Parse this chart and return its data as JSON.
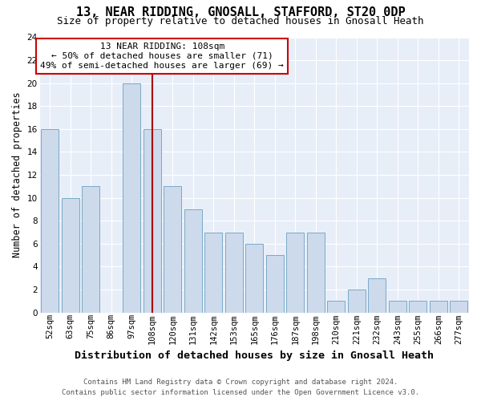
{
  "title1": "13, NEAR RIDDING, GNOSALL, STAFFORD, ST20 0DP",
  "title2": "Size of property relative to detached houses in Gnosall Heath",
  "xlabel": "Distribution of detached houses by size in Gnosall Heath",
  "ylabel": "Number of detached properties",
  "footnote1": "Contains HM Land Registry data © Crown copyright and database right 2024.",
  "footnote2": "Contains public sector information licensed under the Open Government Licence v3.0.",
  "categories": [
    "52sqm",
    "63sqm",
    "75sqm",
    "86sqm",
    "97sqm",
    "108sqm",
    "120sqm",
    "131sqm",
    "142sqm",
    "153sqm",
    "165sqm",
    "176sqm",
    "187sqm",
    "198sqm",
    "210sqm",
    "221sqm",
    "232sqm",
    "243sqm",
    "255sqm",
    "266sqm",
    "277sqm"
  ],
  "bar_values": [
    16,
    10,
    11,
    0,
    20,
    16,
    11,
    9,
    7,
    7,
    6,
    5,
    7,
    7,
    1,
    2,
    3,
    1,
    1,
    1,
    1
  ],
  "bar_color": "#ccdaeb",
  "bar_edge_color": "#7aaac8",
  "ref_line_idx": 5,
  "ref_line_color": "#aa0000",
  "annotation_line1": "13 NEAR RIDDING: 108sqm",
  "annotation_line2": "← 50% of detached houses are smaller (71)",
  "annotation_line3": "49% of semi-detached houses are larger (69) →",
  "annotation_box_facecolor": "#ffffff",
  "annotation_box_edgecolor": "#cc0000",
  "ylim_min": 0,
  "ylim_max": 24,
  "yticks": [
    0,
    2,
    4,
    6,
    8,
    10,
    12,
    14,
    16,
    18,
    20,
    22,
    24
  ],
  "plot_bg_color": "#e8eef8",
  "fig_bg_color": "#ffffff",
  "grid_color": "#ffffff",
  "title1_fontsize": 11,
  "title2_fontsize": 9,
  "ylabel_fontsize": 8.5,
  "xlabel_fontsize": 9.5,
  "tick_fontsize": 7.5,
  "annotation_fontsize": 8,
  "footnote_fontsize": 6.5
}
